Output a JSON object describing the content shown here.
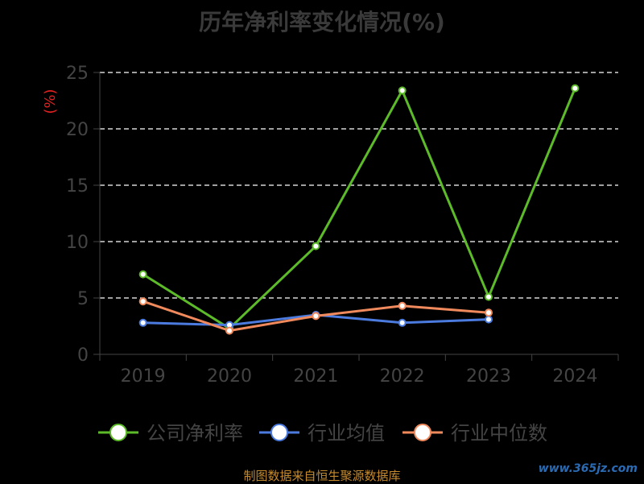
{
  "chart_data": {
    "type": "line",
    "title": "历年净利率变化情况(%)",
    "ylabel": "(%)",
    "categories": [
      "2019",
      "2020",
      "2021",
      "2022",
      "2023",
      "2024"
    ],
    "y_ticks": [
      "0",
      "5",
      "10",
      "15",
      "20",
      "25"
    ],
    "ylim": [
      0,
      25
    ],
    "grid": true,
    "legend_position": "bottom",
    "series": [
      {
        "name": "公司净利率",
        "color": "#5dbb2a",
        "values": [
          7.1,
          2.3,
          9.6,
          23.4,
          5.1,
          23.6
        ]
      },
      {
        "name": "行业均值",
        "color": "#4c7be0",
        "values": [
          2.8,
          2.6,
          3.5,
          2.8,
          3.1,
          null
        ]
      },
      {
        "name": "行业中位数",
        "color": "#f08a5d",
        "values": [
          4.7,
          2.1,
          3.4,
          4.3,
          3.7,
          null
        ]
      }
    ]
  },
  "footer": {
    "source": "制图数据来自恒生聚源数据库",
    "watermark": "www.365jz.com"
  }
}
